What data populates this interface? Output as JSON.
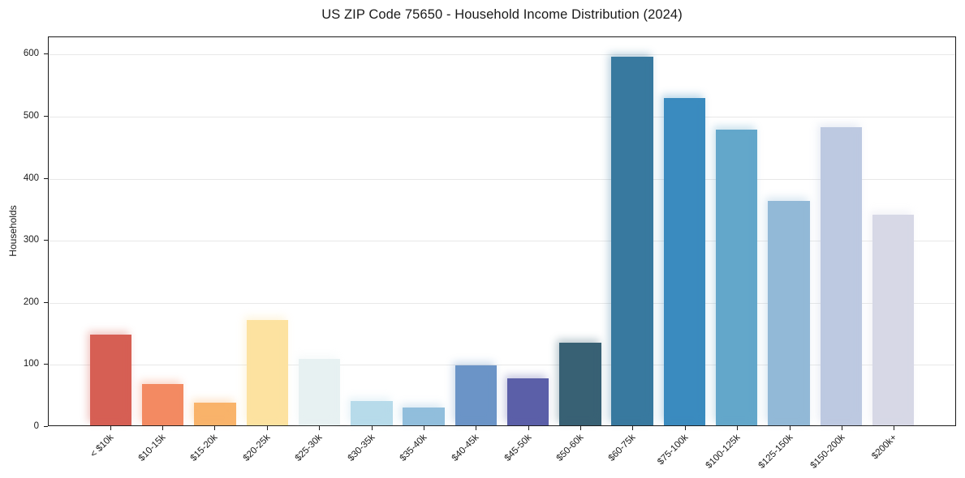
{
  "title": "US ZIP Code 75650 - Household Income Distribution (2024)",
  "chart_data": {
    "type": "bar",
    "title": "US ZIP Code 75650 - Household Income Distribution (2024)",
    "xlabel": "",
    "ylabel": "Households",
    "categories": [
      "< $10k",
      "$10-15k",
      "$15-20k",
      "$20-25k",
      "$25-30k",
      "$30-35k",
      "$35-40k",
      "$40-45k",
      "$45-50k",
      "$50-60k",
      "$60-75k",
      "$75-100k",
      "$100-125k",
      "$125-150k",
      "$150-200k",
      "$200k+"
    ],
    "values": [
      147,
      67,
      37,
      170,
      108,
      40,
      29,
      97,
      76,
      134,
      597,
      530,
      479,
      363,
      483,
      341
    ],
    "bar_colors": [
      "#d65f54",
      "#f38a62",
      "#f9b36a",
      "#fde2a0",
      "#e7f1f2",
      "#b7dbea",
      "#91bedc",
      "#6b94c7",
      "#5b5fa8",
      "#386174",
      "#38799f",
      "#3a8bbf",
      "#63a7ca",
      "#92b9d7",
      "#bdc9e1",
      "#d7d8e6"
    ],
    "yticks": [
      0,
      100,
      200,
      300,
      400,
      500,
      600
    ],
    "ylim": [
      0,
      628
    ],
    "grid": true,
    "legend": false,
    "x_tick_rotation_degrees": 45,
    "grid_color": "#e8e8e8",
    "axis_color": "#1a1a1a",
    "background_color": "#ffffff"
  }
}
